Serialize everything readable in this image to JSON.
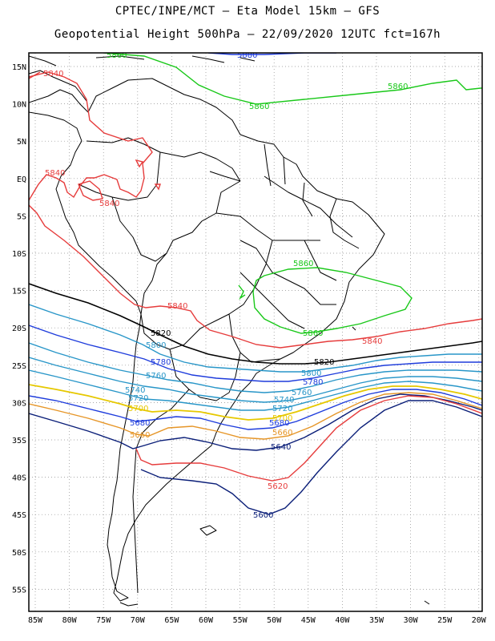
{
  "header": {
    "title_line1": "CPTEC/INPE/MCT –  Eta Model 15km – GFS",
    "title_line2": "Geopotential Height 500hPa – 22/09/2020 12UTC fct=167h"
  },
  "map_axes": {
    "lat_ticks": [
      "15N",
      "10N",
      "5N",
      "EQ",
      "5S",
      "10S",
      "15S",
      "20S",
      "25S",
      "30S",
      "35S",
      "40S",
      "45S",
      "50S",
      "55S"
    ],
    "lon_ticks": [
      "85W",
      "80W",
      "75W",
      "70W",
      "65W",
      "60W",
      "55W",
      "50W",
      "45W",
      "40W",
      "35W",
      "30W",
      "25W",
      "20W"
    ]
  },
  "contour_labels": [
    {
      "text": "5860",
      "color": "#19c819"
    },
    {
      "text": "5880",
      "color": "#1e3cdc"
    },
    {
      "text": "5860",
      "color": "#19c819"
    },
    {
      "text": "5860",
      "color": "#19c819"
    },
    {
      "text": "5840",
      "color": "#e63c3c"
    },
    {
      "text": "5840",
      "color": "#e63c3c"
    },
    {
      "text": "5840",
      "color": "#e63c3c"
    },
    {
      "text": "5860",
      "color": "#19c819"
    },
    {
      "text": "5840",
      "color": "#e63c3c"
    },
    {
      "text": "5860",
      "color": "#19c819"
    },
    {
      "text": "5840",
      "color": "#e63c3c"
    },
    {
      "text": "5820",
      "color": "#000000"
    },
    {
      "text": "5820",
      "color": "#000000"
    },
    {
      "text": "5800",
      "color": "#2896c8"
    },
    {
      "text": "5780",
      "color": "#1e3cdc"
    },
    {
      "text": "5760",
      "color": "#2896c8"
    },
    {
      "text": "5800",
      "color": "#2896c8"
    },
    {
      "text": "5780",
      "color": "#1e3cdc"
    },
    {
      "text": "5760",
      "color": "#2896c8"
    },
    {
      "text": "5740",
      "color": "#2896c8"
    },
    {
      "text": "5740",
      "color": "#2896c8"
    },
    {
      "text": "5720",
      "color": "#2896c8"
    },
    {
      "text": "5720",
      "color": "#2896c8"
    },
    {
      "text": "5700",
      "color": "#e6c800"
    },
    {
      "text": "5700",
      "color": "#e6c800"
    },
    {
      "text": "5680",
      "color": "#1e3cdc"
    },
    {
      "text": "5680",
      "color": "#1e3cdc"
    },
    {
      "text": "5660",
      "color": "#e69628"
    },
    {
      "text": "5660",
      "color": "#e69628"
    },
    {
      "text": "5640",
      "color": "#0a1e78"
    },
    {
      "text": "5620",
      "color": "#e63c3c"
    },
    {
      "text": "5600",
      "color": "#0a1e78"
    }
  ]
}
